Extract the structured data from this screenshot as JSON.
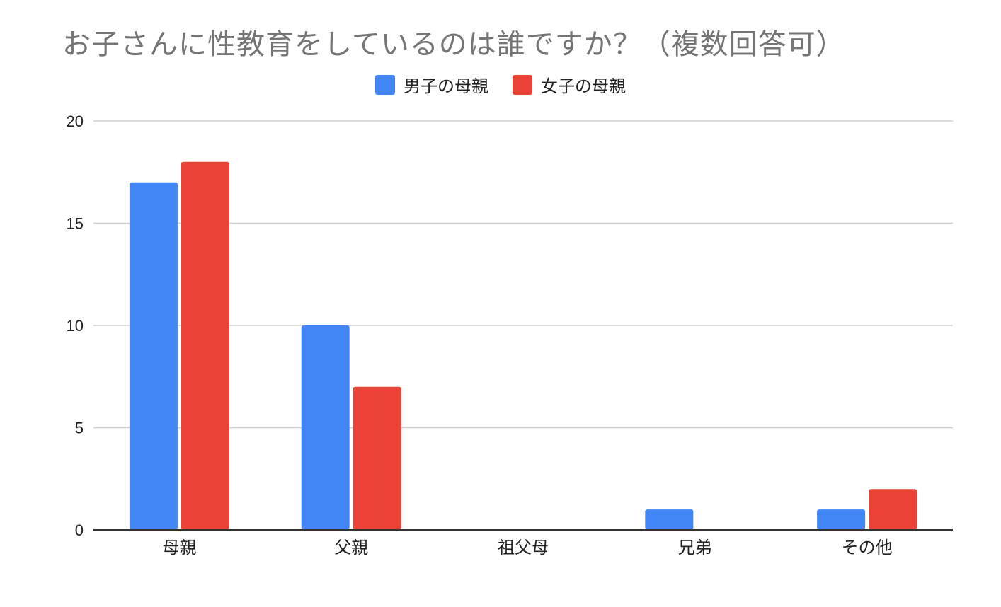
{
  "chart_data": {
    "type": "bar",
    "title": "お子さんに性教育をしているのは誰ですか？（複数回答可）",
    "categories": [
      "母親",
      "父親",
      "祖父母",
      "兄弟",
      "その他"
    ],
    "series": [
      {
        "name": "男子の母親",
        "color": "#4285F4",
        "values": [
          17,
          10,
          0,
          1,
          1
        ]
      },
      {
        "name": "女子の母親",
        "color": "#EA4335",
        "values": [
          18,
          7,
          0,
          0,
          2
        ]
      }
    ],
    "ylim": [
      0,
      20
    ],
    "yticks": [
      0,
      5,
      10,
      15,
      20
    ],
    "grid": true,
    "legend_position": "top"
  }
}
